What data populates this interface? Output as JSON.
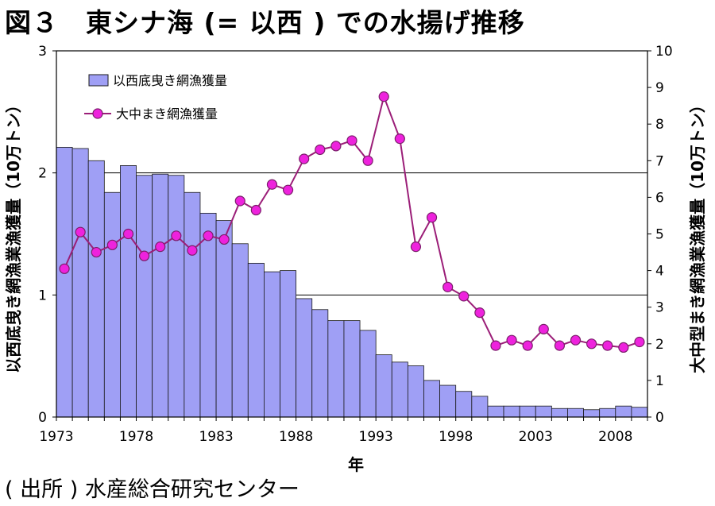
{
  "header": {
    "title": "図３　東シナ海 (= 以西 ) での水揚げ推移"
  },
  "footer": {
    "source": "( 出所 ) 水産総合研究センター"
  },
  "colors": {
    "bar_fill": "#9f9ff5",
    "bar_stroke": "#1a1a1a",
    "line": "#9b1e78",
    "marker_fill": "#ee22dd",
    "marker_stroke": "#7a1f6a",
    "axis": "#000000",
    "grid": "#000000"
  },
  "chart_data": {
    "type": "bar+line",
    "xlabel": "年",
    "left_axis": {
      "label": "以西底曳き網漁業漁獲量（10万トン）",
      "range": [
        0,
        3
      ],
      "ticks": [
        0,
        1,
        2,
        3
      ]
    },
    "right_axis": {
      "label": "大中型まき網漁業漁獲量（10万トン）",
      "range": [
        0,
        10
      ],
      "ticks": [
        0,
        1,
        2,
        3,
        4,
        5,
        6,
        7,
        8,
        9,
        10
      ]
    },
    "grid": {
      "y_left": [
        1,
        2
      ]
    },
    "x_tick_labels": [
      "1973",
      "1978",
      "1983",
      "1988",
      "1993",
      "1998",
      "2003",
      "2008"
    ],
    "years": [
      1973,
      1974,
      1975,
      1976,
      1977,
      1978,
      1979,
      1980,
      1981,
      1982,
      1983,
      1984,
      1985,
      1986,
      1987,
      1988,
      1989,
      1990,
      1991,
      1992,
      1993,
      1994,
      1995,
      1996,
      1997,
      1998,
      1999,
      2000,
      2001,
      2002,
      2003,
      2004,
      2005,
      2006,
      2007,
      2008,
      2009
    ],
    "legend": {
      "position": "top-left",
      "entries": [
        "以西底曳き網漁獲量",
        "大中まき網漁獲量"
      ]
    },
    "series": [
      {
        "name": "以西底曳き網漁獲量",
        "type": "bar",
        "axis": "left",
        "values": [
          2.21,
          2.2,
          2.1,
          1.84,
          2.06,
          1.98,
          1.99,
          1.98,
          1.84,
          1.67,
          1.61,
          1.42,
          1.26,
          1.19,
          1.2,
          0.97,
          0.88,
          0.79,
          0.79,
          0.71,
          0.51,
          0.45,
          0.42,
          0.3,
          0.26,
          0.21,
          0.17,
          0.09,
          0.09,
          0.09,
          0.09,
          0.07,
          0.07,
          0.06,
          0.07,
          0.09,
          0.08
        ]
      },
      {
        "name": "大中まき網漁獲量",
        "type": "line",
        "axis": "right",
        "values": [
          4.05,
          5.05,
          4.5,
          4.7,
          5.0,
          4.4,
          4.65,
          4.95,
          4.55,
          4.95,
          4.85,
          5.9,
          5.65,
          6.35,
          6.2,
          7.05,
          7.3,
          7.4,
          7.55,
          7.0,
          8.75,
          7.6,
          4.65,
          5.45,
          3.55,
          3.3,
          2.85,
          1.95,
          2.1,
          1.95,
          2.4,
          1.95,
          2.1,
          2.0,
          1.95,
          1.9,
          2.05
        ]
      }
    ]
  }
}
